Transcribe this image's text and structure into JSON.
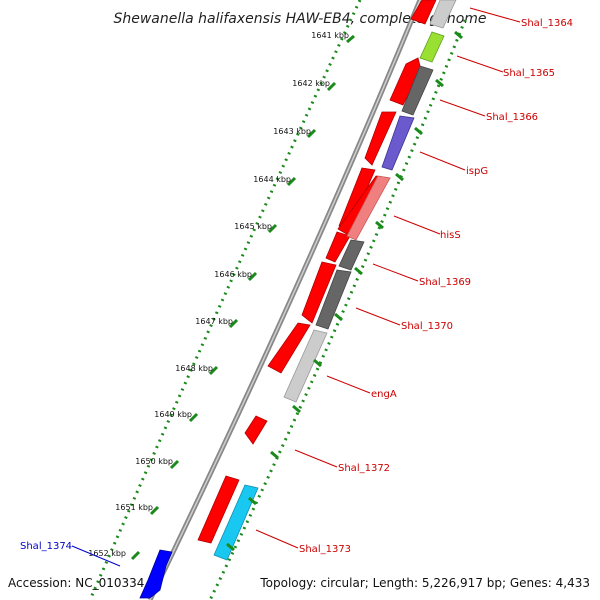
{
  "title": "Shewanella halifaxensis HAW-EB4, complete genome",
  "accession": "Accession: NC_010334",
  "summary": "Topology: circular; Length: 5,226,917 bp; Genes: 4,433",
  "scale_labels": [
    "1641 kbp",
    "1642 kbp",
    "1643 kbp",
    "1644 kbp",
    "1645 kbp",
    "1646 kbp",
    "1647 kbp",
    "1648 kbp",
    "1649 kbp",
    "1650 kbp",
    "1651 kbp",
    "1652 kbp"
  ],
  "gene_labels": [
    "Shal_1364",
    "Shal_1365",
    "Shal_1366",
    "ispG",
    "hisS",
    "Shal_1369",
    "Shal_1370",
    "engA",
    "Shal_1372",
    "Shal_1373",
    "Shal_1374"
  ],
  "colors": {
    "forward_gene": "#ff0000",
    "reverse_gene": "#0000ff",
    "label_red": "#cc0000",
    "label_blue": "#0000cc",
    "tick_green": "#1a8a1a",
    "backbone": "#888888",
    "cog_gray": "#666666",
    "cog_lightgray": "#bbbbbb",
    "cog_purple": "#6a5acd",
    "cog_pink": "#f08080",
    "cog_cyan": "#19c8f0",
    "cog_lime": "#99e033"
  }
}
